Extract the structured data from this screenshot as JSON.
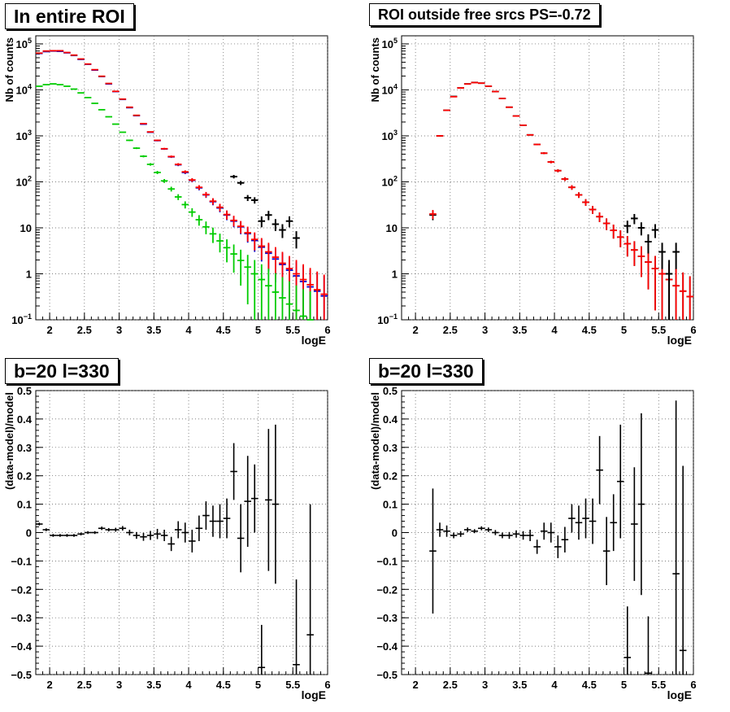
{
  "colors": {
    "data": "#000000",
    "total_model": "#ff0000",
    "model_blue": "#0000cc",
    "model_green": "#00cc00",
    "grid": "#555555"
  },
  "panels": [
    {
      "title": "In entire ROI",
      "xlabel": "logE",
      "ylabel": "Nb of counts"
    },
    {
      "title": "ROI outside free srcs PS=-0.72",
      "xlabel": "logE",
      "ylabel": "Nb of counts"
    },
    {
      "title": "b=20 l=330",
      "xlabel": "logE",
      "ylabel": "(data-model)/model"
    },
    {
      "title": "b=20 l=330",
      "xlabel": "logE",
      "ylabel": "(data-model)/model"
    }
  ],
  "chart_data": [
    {
      "type": "scatter",
      "title": "In entire ROI",
      "xlabel": "logE",
      "ylabel": "Nb of counts",
      "yscale": "log",
      "xlim": [
        1.8,
        6
      ],
      "ylim": [
        0.1,
        150000
      ],
      "xticks": [
        "2",
        "2.5",
        "3",
        "3.5",
        "4",
        "4.5",
        "5",
        "5.5",
        "6"
      ],
      "yticks": [
        "10^-1",
        "1",
        "10",
        "10^2",
        "10^3",
        "10^4",
        "10^5"
      ],
      "grid": true,
      "x": [
        1.85,
        1.95,
        2.05,
        2.15,
        2.25,
        2.35,
        2.45,
        2.55,
        2.65,
        2.75,
        2.85,
        2.95,
        3.05,
        3.15,
        3.25,
        3.35,
        3.45,
        3.55,
        3.65,
        3.75,
        3.85,
        3.95,
        4.05,
        4.15,
        4.25,
        4.35,
        4.45,
        4.55,
        4.65,
        4.75,
        4.85,
        4.95,
        5.05,
        5.15,
        5.25,
        5.35,
        5.45,
        5.55,
        5.65,
        5.75,
        5.85,
        5.95
      ],
      "series": [
        {
          "values": [
            62000,
            68000,
            70000,
            69000,
            64000,
            56000,
            46000,
            36000,
            27000,
            19500,
            13500,
            9200,
            6200,
            4100,
            2750,
            1800,
            1200,
            790,
            520,
            350,
            235,
            160,
            108,
            74,
            52,
            37,
            27,
            19,
            14,
            10.5,
            7.5,
            5.3,
            3.8,
            2.8,
            2.1,
            1.6,
            1.2,
            0.9,
            0.68,
            0.52,
            0.42,
            0.33
          ]
        },
        {
          "values": [
            63000,
            70000,
            71000,
            71000,
            65000,
            57000,
            47000,
            36500,
            27500,
            19800,
            13800,
            9300,
            6300,
            4200,
            2800,
            1850,
            1220,
            800,
            525,
            355,
            240,
            165,
            110,
            76,
            53,
            38,
            28,
            19.5,
            14.5,
            10.8,
            7.8,
            5.6,
            4,
            3,
            2.3,
            1.7,
            1.3,
            1,
            0.75,
            0.58,
            0.45,
            0.36
          ]
        },
        {
          "values": [
            12000,
            13000,
            13500,
            13000,
            12000,
            10400,
            8600,
            6800,
            5100,
            3700,
            2600,
            1800,
            1200,
            800,
            540,
            360,
            240,
            160,
            105,
            70,
            47,
            32,
            22,
            15,
            10.5,
            7.4,
            5.2,
            3.7,
            2.7,
            1.95,
            1.4,
            1.0,
            0.75,
            0.55,
            0.4,
            0.3,
            0.22,
            0.16,
            0.12,
            0.1,
            0.08,
            0.06
          ]
        },
        {
          "values": [
            null,
            null,
            null,
            null,
            null,
            null,
            null,
            null,
            null,
            null,
            null,
            null,
            null,
            null,
            null,
            null,
            null,
            null,
            null,
            null,
            null,
            null,
            null,
            null,
            null,
            null,
            null,
            null,
            130,
            95,
            45,
            40,
            14,
            19,
            12,
            9,
            14,
            6,
            null,
            null,
            null,
            null
          ]
        }
      ]
    },
    {
      "type": "scatter",
      "title": "ROI outside free srcs PS=-0.72",
      "xlabel": "logE",
      "ylabel": "Nb of counts",
      "yscale": "log",
      "xlim": [
        1.8,
        6
      ],
      "ylim": [
        0.1,
        150000
      ],
      "xticks": [
        "2",
        "2.5",
        "3",
        "3.5",
        "4",
        "4.5",
        "5",
        "5.5",
        "6"
      ],
      "yticks": [
        "10^-1",
        "1",
        "10",
        "10^2",
        "10^3",
        "10^4",
        "10^5"
      ],
      "grid": true,
      "x": [
        2.25,
        2.35,
        2.45,
        2.55,
        2.65,
        2.75,
        2.85,
        2.95,
        3.05,
        3.15,
        3.25,
        3.35,
        3.45,
        3.55,
        3.65,
        3.75,
        3.85,
        3.95,
        4.05,
        4.15,
        4.25,
        4.35,
        4.45,
        4.55,
        4.65,
        4.75,
        4.85,
        4.95,
        5.05,
        5.15,
        5.25,
        5.35,
        5.45,
        5.55,
        5.65,
        5.75,
        5.85,
        5.95
      ],
      "series": [
        {
          "values": [
            19,
            1000,
            3600,
            7200,
            11000,
            13500,
            14500,
            14000,
            12000,
            9200,
            6500,
            4200,
            2700,
            1700,
            1050,
            650,
            420,
            270,
            175,
            115,
            76,
            52,
            36,
            25,
            17.5,
            12.5,
            8.8,
            6.3,
            4.5,
            3.3,
            2.4,
            1.8,
            1.3,
            1.0,
            0.75,
            0.55,
            0.42,
            0.32
          ]
        },
        {
          "values": [
            20,
            1000,
            3600,
            7100,
            11000,
            13400,
            14400,
            14000,
            12000,
            9200,
            6500,
            4200,
            2700,
            1700,
            1050,
            650,
            420,
            270,
            175,
            115,
            76,
            52,
            36,
            25,
            17.5,
            12.5,
            8.8,
            6.3,
            4.5,
            3.3,
            2.4,
            1.8,
            1.3,
            1.0,
            0.75,
            0.55,
            0.42,
            0.32
          ]
        },
        {
          "values": [
            null,
            null,
            null,
            null,
            null,
            null,
            null,
            null,
            null,
            null,
            null,
            null,
            null,
            null,
            null,
            null,
            null,
            null,
            null,
            null,
            null,
            null,
            null,
            null,
            null,
            null,
            null,
            null,
            11,
            16,
            10,
            5,
            9,
            3,
            1,
            3,
            null,
            null
          ]
        }
      ]
    },
    {
      "type": "scatter",
      "title": "b=20 l=330",
      "xlabel": "logE",
      "ylabel": "(data-model)/model",
      "xlim": [
        1.8,
        6
      ],
      "ylim": [
        -0.5,
        0.5
      ],
      "xticks": [
        "2",
        "2.5",
        "3",
        "3.5",
        "4",
        "4.5",
        "5",
        "5.5",
        "6"
      ],
      "yticks": [
        "-0.5",
        "-0.4",
        "-0.3",
        "-0.2",
        "-0.1",
        "0",
        "0.1",
        "0.2",
        "0.3",
        "0.4",
        "0.5"
      ],
      "grid": true,
      "x": [
        1.85,
        1.95,
        2.05,
        2.15,
        2.25,
        2.35,
        2.45,
        2.55,
        2.65,
        2.75,
        2.85,
        2.95,
        3.05,
        3.15,
        3.25,
        3.35,
        3.45,
        3.55,
        3.65,
        3.75,
        3.85,
        3.95,
        4.05,
        4.15,
        4.25,
        4.35,
        4.45,
        4.55,
        4.65,
        4.75,
        4.85,
        4.95,
        5.05,
        5.15,
        5.25,
        5.35,
        5.45,
        5.55,
        5.65,
        5.75,
        5.85,
        5.95
      ],
      "series": [
        {
          "values": [
            0.03,
            0.01,
            -0.01,
            -0.01,
            -0.01,
            -0.01,
            -0.005,
            0.0,
            0.0,
            0.015,
            0.01,
            0.01,
            0.015,
            0.0,
            -0.01,
            -0.015,
            -0.01,
            -0.005,
            -0.01,
            -0.04,
            0.01,
            0.0,
            -0.03,
            0.015,
            0.06,
            0.04,
            0.04,
            0.05,
            0.215,
            -0.02,
            0.11,
            0.12,
            -0.475,
            0.115,
            0.1,
            null,
            null,
            -0.465,
            null,
            -0.36,
            null,
            null
          ],
          "errors": [
            0.005,
            0.005,
            0.005,
            0.005,
            0.005,
            0.005,
            0.005,
            0.005,
            0.005,
            0.006,
            0.006,
            0.007,
            0.008,
            0.01,
            0.012,
            0.014,
            0.016,
            0.018,
            0.02,
            0.025,
            0.03,
            0.035,
            0.04,
            0.045,
            0.05,
            0.055,
            0.06,
            0.07,
            0.1,
            0.12,
            0.16,
            0.12,
            0.15,
            0.25,
            0.28,
            null,
            null,
            0.3,
            null,
            0.46,
            null,
            null
          ]
        }
      ]
    },
    {
      "type": "scatter",
      "title": "b=20 l=330",
      "xlabel": "logE",
      "ylabel": "(data-model)/model",
      "xlim": [
        1.8,
        6
      ],
      "ylim": [
        -0.5,
        0.5
      ],
      "xticks": [
        "2",
        "2.5",
        "3",
        "3.5",
        "4",
        "4.5",
        "5",
        "5.5",
        "6"
      ],
      "yticks": [
        "-0.5",
        "-0.4",
        "-0.3",
        "-0.2",
        "-0.1",
        "0",
        "0.1",
        "0.2",
        "0.3",
        "0.4",
        "0.5"
      ],
      "grid": true,
      "x": [
        2.25,
        2.35,
        2.45,
        2.55,
        2.65,
        2.75,
        2.85,
        2.95,
        3.05,
        3.15,
        3.25,
        3.35,
        3.45,
        3.55,
        3.65,
        3.75,
        3.85,
        3.95,
        4.05,
        4.15,
        4.25,
        4.35,
        4.45,
        4.55,
        4.65,
        4.75,
        4.85,
        4.95,
        5.05,
        5.15,
        5.25,
        5.35,
        5.45,
        5.55,
        5.65,
        5.75,
        5.85,
        5.95
      ],
      "series": [
        {
          "values": [
            -0.065,
            0.01,
            0.005,
            -0.01,
            -0.005,
            0.01,
            0.005,
            0.015,
            0.01,
            0.0,
            -0.01,
            -0.01,
            -0.005,
            -0.01,
            -0.01,
            -0.05,
            0.005,
            0.0,
            -0.05,
            -0.025,
            0.05,
            0.035,
            0.05,
            0.04,
            0.22,
            -0.065,
            0.035,
            0.18,
            -0.44,
            0.03,
            0.1,
            -0.495,
            null,
            null,
            null,
            -0.145,
            -0.415,
            null
          ],
          "errors": [
            0.22,
            0.025,
            0.02,
            0.01,
            0.01,
            0.008,
            0.007,
            0.007,
            0.008,
            0.009,
            0.01,
            0.012,
            0.013,
            0.015,
            0.02,
            0.025,
            0.03,
            0.035,
            0.04,
            0.045,
            0.05,
            0.06,
            0.07,
            0.08,
            0.12,
            0.12,
            0.1,
            0.2,
            0.18,
            0.2,
            0.32,
            0.2,
            null,
            null,
            null,
            0.61,
            0.65,
            null
          ]
        }
      ]
    }
  ]
}
